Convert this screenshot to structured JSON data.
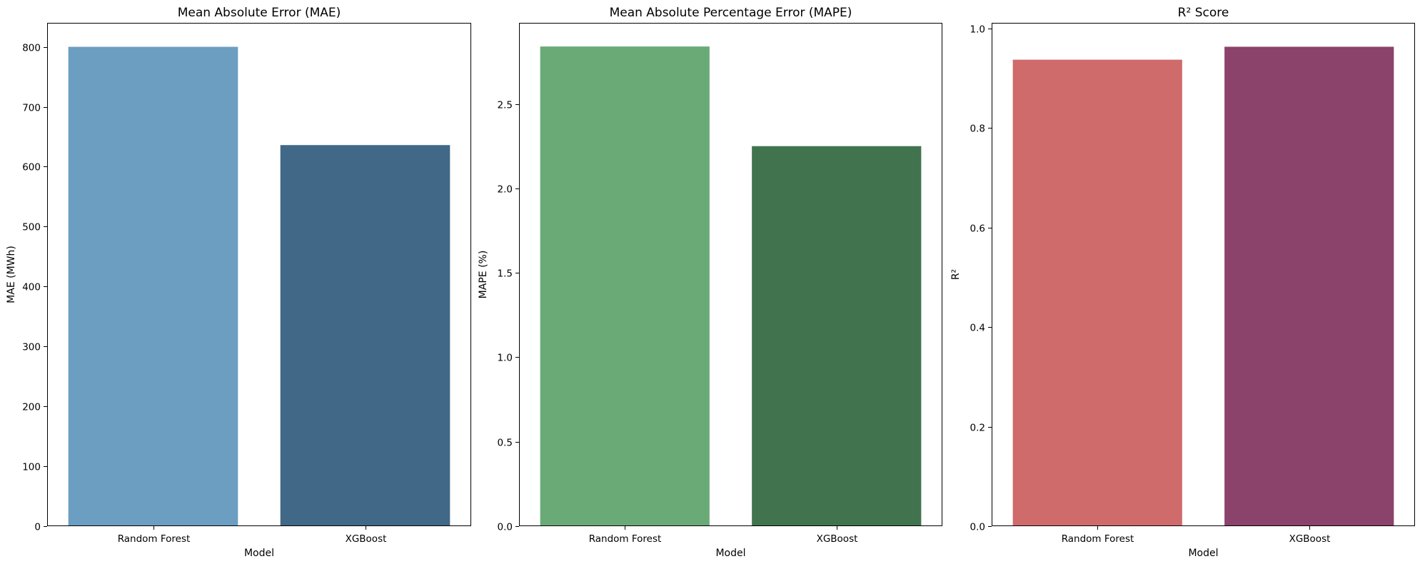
{
  "chart_data": [
    {
      "type": "bar",
      "title": "Mean Absolute Error (MAE)",
      "xlabel": "Model",
      "ylabel": "MAE (MWh)",
      "categories": [
        "Random Forest",
        "XGBoost"
      ],
      "values": [
        800,
        636
      ],
      "colors": [
        "#6b9ec1",
        "#416886"
      ],
      "ylim": [
        0,
        840
      ],
      "yticks": [
        0,
        100,
        200,
        300,
        400,
        500,
        600,
        700,
        800
      ],
      "ytick_labels": [
        "0",
        "100",
        "200",
        "300",
        "400",
        "500",
        "600",
        "700",
        "800"
      ],
      "grid": false,
      "legend": "none"
    },
    {
      "type": "bar",
      "title": "Mean Absolute Percentage Error (MAPE)",
      "xlabel": "Model",
      "ylabel": "MAPE (%)",
      "categories": [
        "Random Forest",
        "XGBoost"
      ],
      "values": [
        2.84,
        2.25
      ],
      "colors": [
        "#6aaa76",
        "#41744e"
      ],
      "ylim": [
        0,
        2.98
      ],
      "yticks": [
        0,
        0.5,
        1.0,
        1.5,
        2.0,
        2.5
      ],
      "ytick_labels": [
        "0.0",
        "0.5",
        "1.0",
        "1.5",
        "2.0",
        "2.5"
      ],
      "grid": false,
      "legend": "none"
    },
    {
      "type": "bar",
      "title": "R² Score",
      "xlabel": "Model",
      "ylabel": "R²",
      "categories": [
        "Random Forest",
        "XGBoost"
      ],
      "values": [
        0.937,
        0.963
      ],
      "colors": [
        "#d06b6b",
        "#8b426b"
      ],
      "ylim": [
        0,
        1.011
      ],
      "yticks": [
        0,
        0.2,
        0.4,
        0.6,
        0.8,
        1.0
      ],
      "ytick_labels": [
        "0.0",
        "0.2",
        "0.4",
        "0.6",
        "0.8",
        "1.0"
      ],
      "grid": false,
      "legend": "none"
    }
  ]
}
